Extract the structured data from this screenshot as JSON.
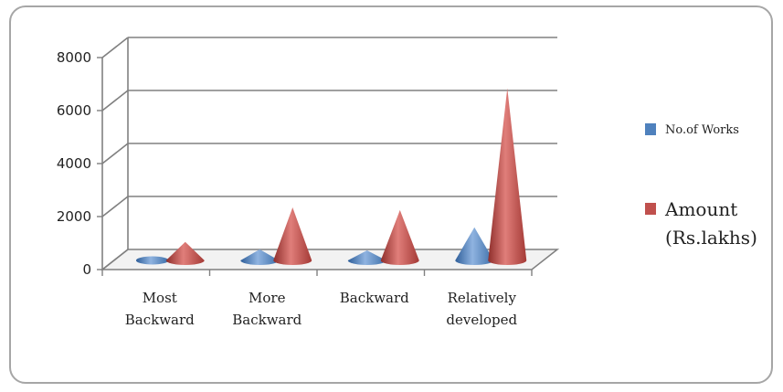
{
  "chart_data": {
    "type": "bar",
    "categories": [
      [
        "Most",
        "Backward"
      ],
      [
        "More",
        "Backward"
      ],
      [
        "Backward"
      ],
      [
        "Relatively",
        "developed"
      ]
    ],
    "series": [
      {
        "name": "No.of Works",
        "values": [
          110,
          420,
          380,
          1250
        ],
        "color": "#4f81bd"
      },
      {
        "name": "Amount (Rs.lakhs)",
        "legend_lines": [
          "Amount",
          "(Rs.lakhs)"
        ],
        "values": [
          700,
          2000,
          1900,
          6500
        ],
        "color": "#c0504d"
      }
    ],
    "yticks": [
      0,
      2000,
      4000,
      6000,
      8000
    ],
    "ylim": [
      0,
      8000
    ],
    "grid": true,
    "legend": "right",
    "style": "3d-cone"
  }
}
